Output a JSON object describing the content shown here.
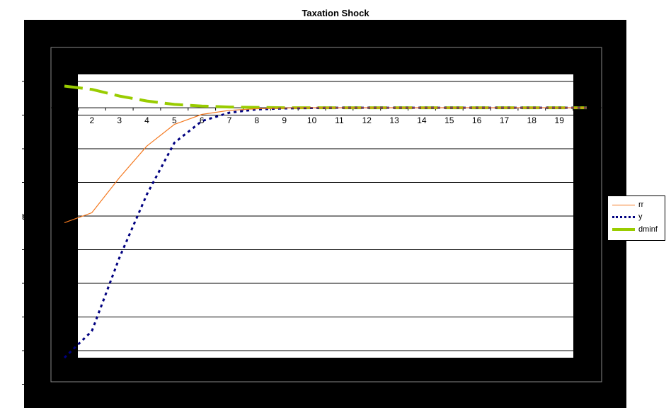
{
  "chart_data": {
    "type": "line",
    "title": "Taxation Shock",
    "ylabel": "%",
    "xlabel": "",
    "x": [
      1,
      2,
      3,
      4,
      5,
      6,
      7,
      8,
      9,
      10,
      11,
      12,
      13,
      14,
      15,
      16,
      17,
      18,
      19,
      20
    ],
    "x_tick_labels": [
      "2",
      "3",
      "4",
      "5",
      "6",
      "7",
      "8",
      "9",
      "10",
      "11",
      "12",
      "13",
      "14",
      "15",
      "16",
      "17",
      "18",
      "19"
    ],
    "y_tick_labels": [],
    "grid": true,
    "legend_position": "right",
    "plot_background": "#ffffff",
    "chart_area_background": "#000000",
    "gridline_color": "#000000",
    "series": [
      {
        "name": "rr",
        "color": "#f47920",
        "style": "solid",
        "values": [
          -3.45,
          -3.15,
          -2.1,
          -1.15,
          -0.5,
          -0.2,
          -0.08,
          -0.03,
          -0.01,
          0,
          0,
          0,
          0,
          0,
          0,
          0,
          0,
          0,
          0,
          0
        ]
      },
      {
        "name": "y",
        "color": "#000080",
        "style": "dotted",
        "values": [
          -7.5,
          -6.7,
          -4.5,
          -2.6,
          -1.05,
          -0.4,
          -0.15,
          -0.05,
          -0.02,
          -0.01,
          0,
          0,
          0,
          0,
          0,
          0,
          0,
          0,
          0,
          0
        ]
      },
      {
        "name": "dminf",
        "color": "#99cc00",
        "style": "dashed",
        "values": [
          0.65,
          0.55,
          0.35,
          0.2,
          0.1,
          0.05,
          0.02,
          0.01,
          0,
          0,
          0,
          0,
          0,
          0,
          0,
          0,
          0,
          0,
          0,
          0
        ]
      }
    ]
  }
}
